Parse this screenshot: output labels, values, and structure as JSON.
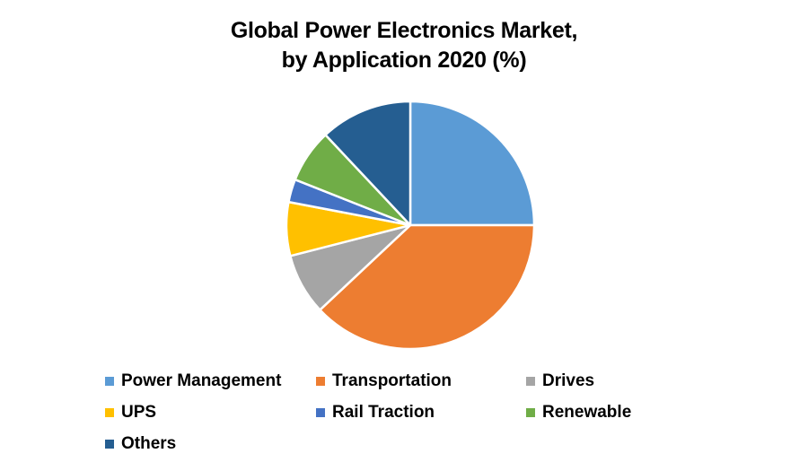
{
  "chart_data": {
    "type": "pie",
    "title_line1": "Global Power Electronics Market,",
    "title_line2": "by Application 2020 (%)",
    "categories": [
      "Power Management",
      "Transportation",
      "Drives",
      "UPS",
      "Rail Traction",
      "Renewable",
      "Others"
    ],
    "values": [
      25,
      38,
      8,
      7,
      3,
      7,
      12
    ],
    "colors": [
      "#5B9BD5",
      "#ED7D31",
      "#A5A5A5",
      "#FFC000",
      "#4472C4",
      "#70AD47",
      "#255E91"
    ],
    "start_angle_deg": 0,
    "direction": "clockwise",
    "legend_position": "bottom"
  }
}
